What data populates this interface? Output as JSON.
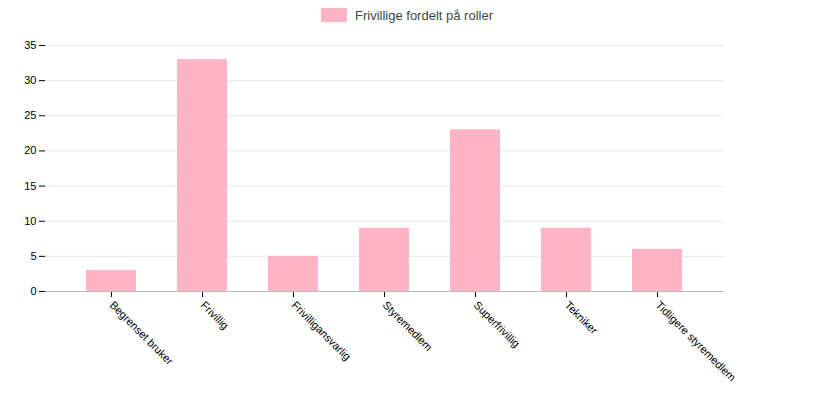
{
  "chart_data": {
    "type": "bar",
    "categories": [
      "Begrenset bruker",
      "Frivillig",
      "Frivilligansvarlig",
      "Styremedlem",
      "Superfrivillig",
      "Tekniker",
      "Tidligere styremedlem"
    ],
    "series": [
      {
        "name": "Frivillige fordelt på roller",
        "color": "#ffb3c6",
        "values": [
          3,
          33,
          5,
          9,
          23,
          9,
          6
        ]
      }
    ],
    "ylim": [
      0,
      35
    ],
    "yticks": [
      0,
      5,
      10,
      15,
      20,
      25,
      30,
      35
    ],
    "grid": true,
    "legend": "top"
  }
}
